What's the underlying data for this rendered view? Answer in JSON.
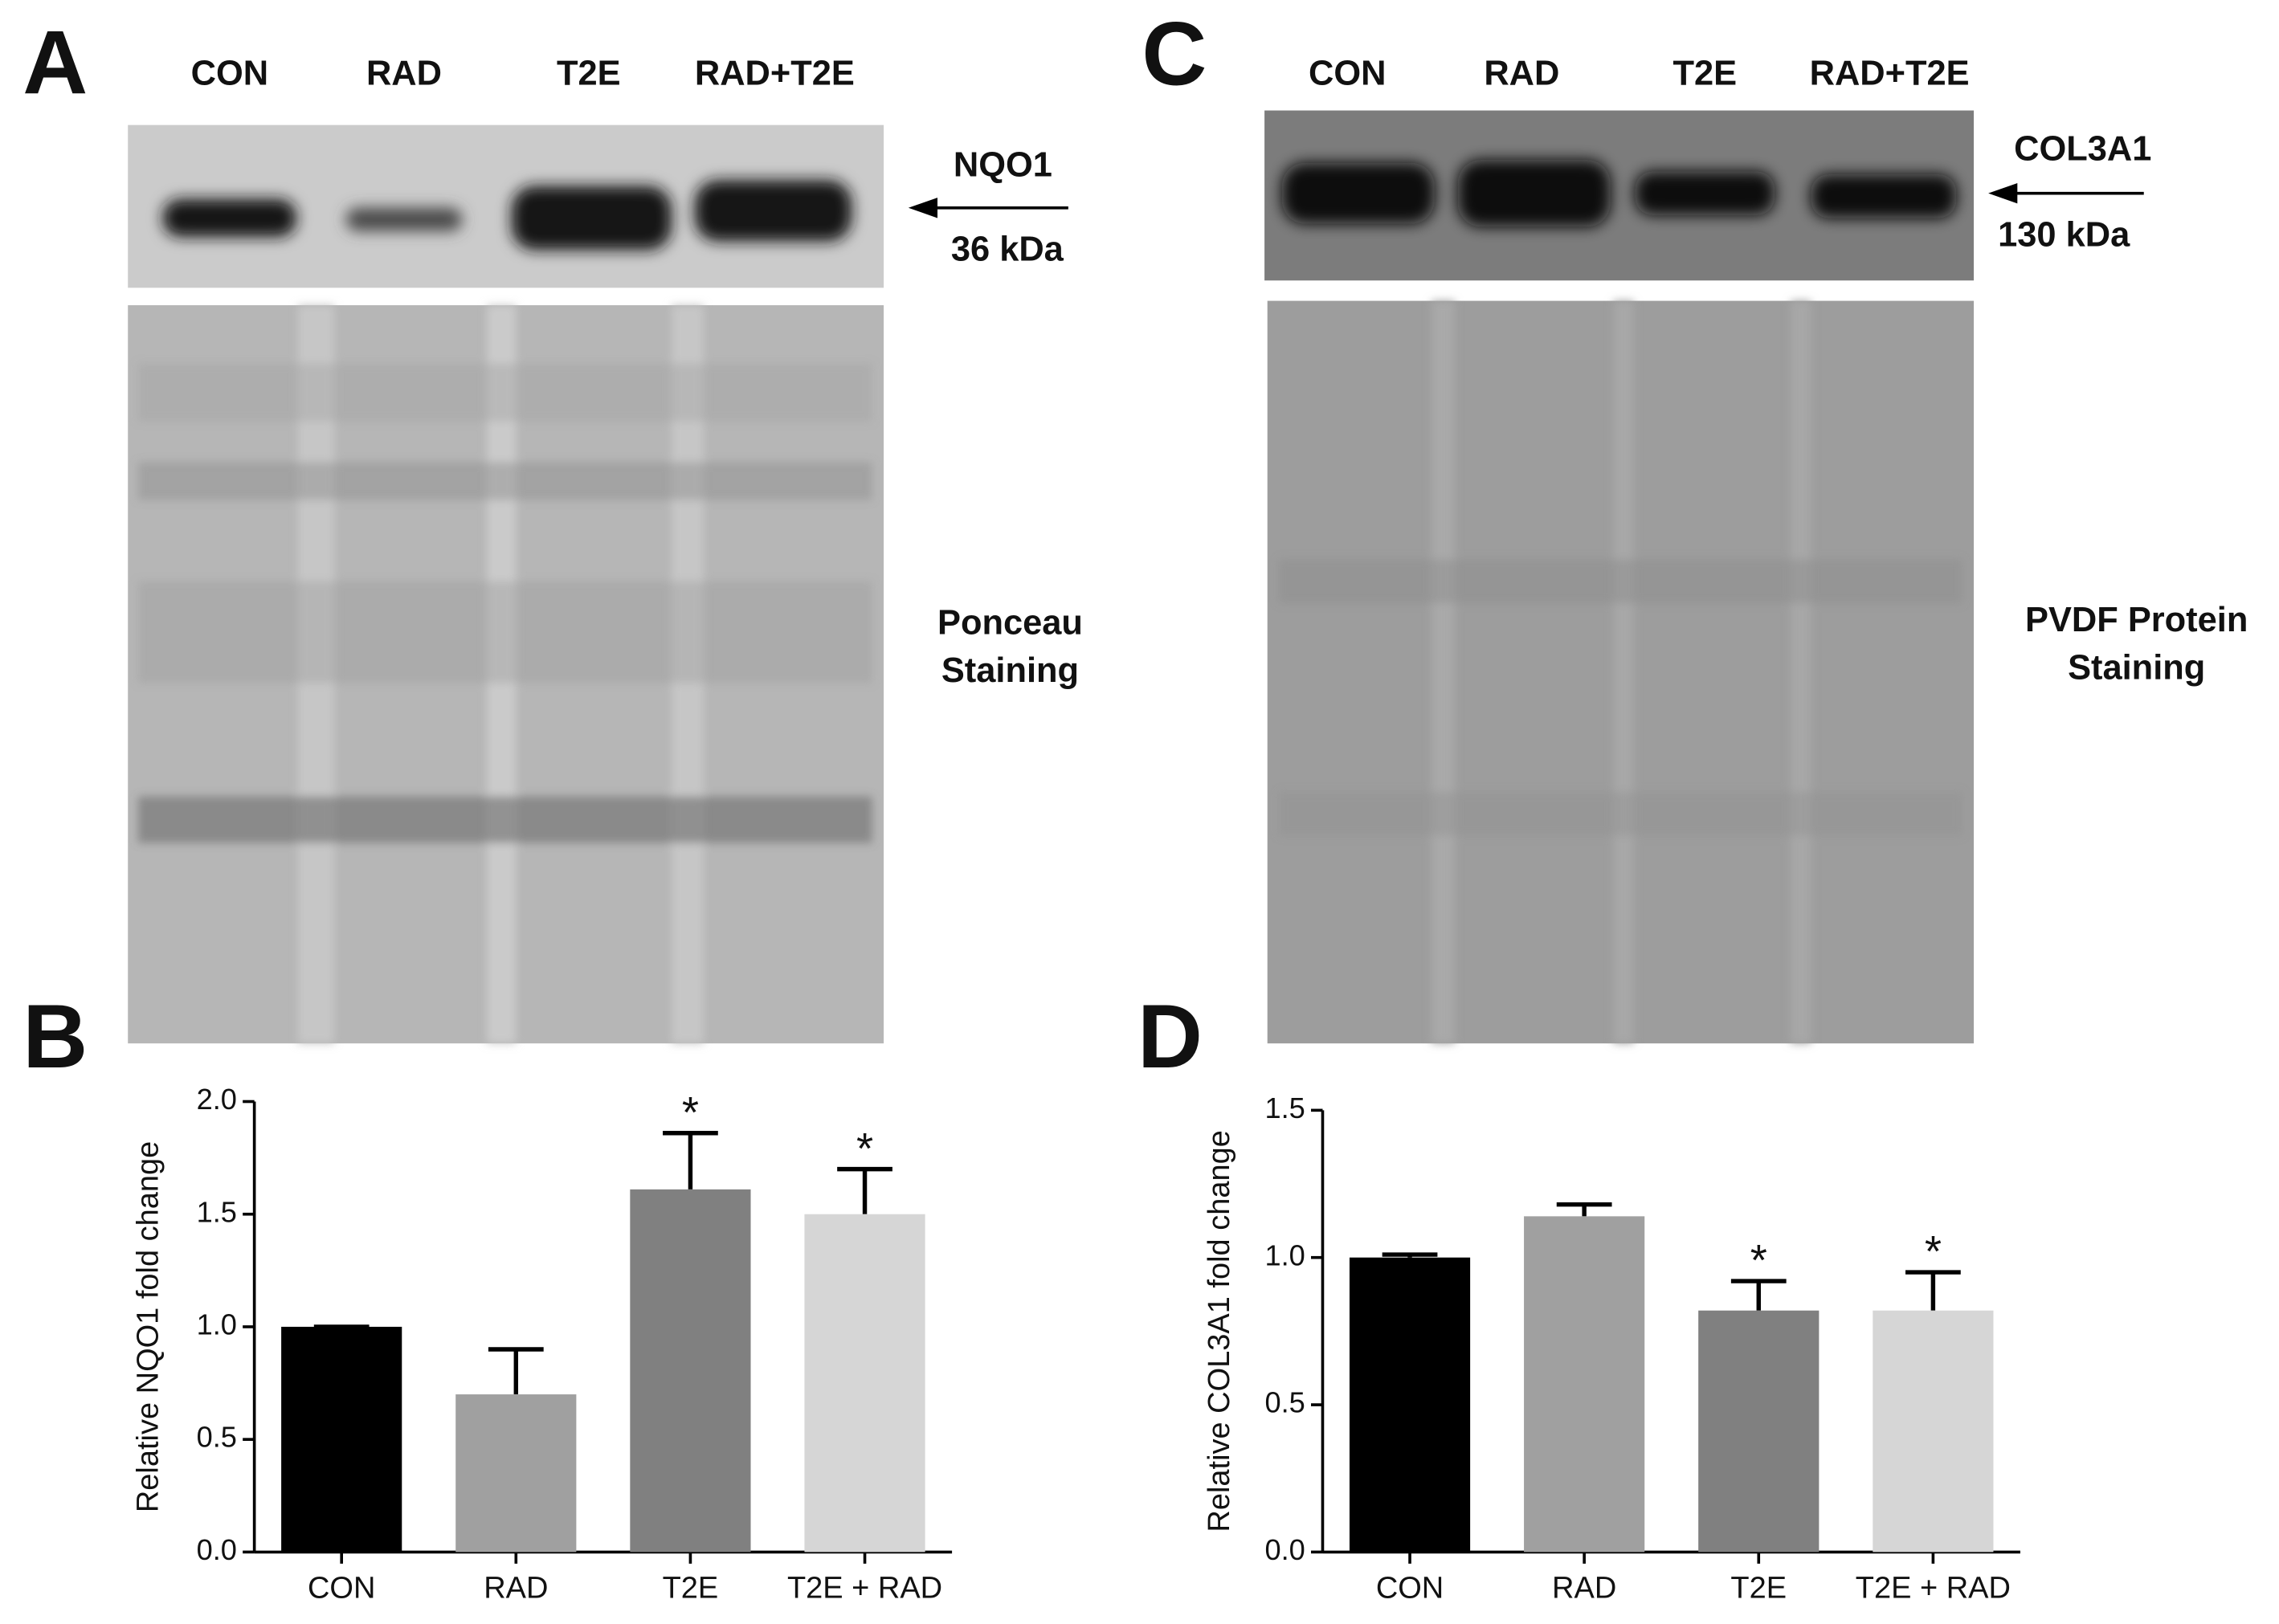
{
  "blots": [
    {
      "panel": "A",
      "lanes": [
        "CON",
        "RAD",
        "T2E",
        "RAD+T2E"
      ],
      "protein": "NQO1",
      "size": "36 kDa",
      "stain": [
        "Ponceau",
        "Staining"
      ]
    },
    {
      "panel": "C",
      "lanes": [
        "CON",
        "RAD",
        "T2E",
        "RAD+T2E"
      ],
      "protein": "COL3A1",
      "size": "130 kDa",
      "stain": [
        "PVDF Protein",
        "Staining"
      ]
    }
  ],
  "chart_data": [
    {
      "type": "bar",
      "panel": "B",
      "y_label": "Relative NQO1 fold change",
      "categories": [
        "CON",
        "RAD",
        "T2E",
        "T2E + RAD"
      ],
      "values": [
        1.0,
        0.7,
        1.61,
        1.5
      ],
      "errors": [
        0,
        0.2,
        0.25,
        0.2
      ],
      "significance": [
        null,
        null,
        "*",
        "*"
      ],
      "colors": [
        "#000000",
        "#a0a0a0",
        "#808080",
        "#d6d6d6"
      ],
      "ylim": [
        0,
        2
      ],
      "yticks": [
        {
          "value": 0,
          "label": "0.0"
        },
        {
          "value": 0.5,
          "label": "0.5"
        },
        {
          "value": 1,
          "label": "1.0"
        },
        {
          "value": 1.5,
          "label": "1.5"
        },
        {
          "value": 2,
          "label": "2.0"
        }
      ]
    },
    {
      "type": "bar",
      "panel": "D",
      "y_label": "Relative COL3A1 fold change",
      "categories": [
        "CON",
        "RAD",
        "T2E",
        "T2E + RAD"
      ],
      "values": [
        1.0,
        1.14,
        0.82,
        0.82
      ],
      "errors": [
        0.01,
        0.04,
        0.1,
        0.13
      ],
      "significance": [
        null,
        null,
        "*",
        "*"
      ],
      "colors": [
        "#000000",
        "#a0a0a0",
        "#808080",
        "#d6d6d6"
      ],
      "ylim": [
        0,
        1.5
      ],
      "yticks": [
        {
          "value": 0,
          "label": "0.0"
        },
        {
          "value": 0.5,
          "label": "0.5"
        },
        {
          "value": 1,
          "label": "1.0"
        },
        {
          "value": 1.5,
          "label": "1.5"
        }
      ]
    }
  ]
}
